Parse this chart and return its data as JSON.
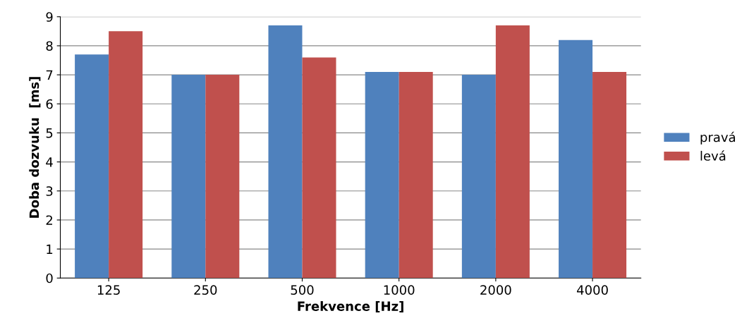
{
  "chart_data": {
    "type": "bar",
    "xlabel": "Frekvence [Hz]",
    "ylabel": "Doba dozvuku  [ms]",
    "categories": [
      "125",
      "250",
      "500",
      "1000",
      "2000",
      "4000"
    ],
    "series": [
      {
        "name": "pravá",
        "color": "#4f81bd",
        "values": [
          7.7,
          7.0,
          8.7,
          7.1,
          7.0,
          8.2
        ]
      },
      {
        "name": "levá",
        "color": "#c0504d",
        "values": [
          8.5,
          7.0,
          7.6,
          7.1,
          8.7,
          7.1
        ]
      }
    ],
    "ylim": [
      0,
      9
    ],
    "yticks": [
      0,
      1,
      2,
      3,
      4,
      5,
      6,
      7,
      8,
      9
    ],
    "grid": "y",
    "legend": "right"
  }
}
